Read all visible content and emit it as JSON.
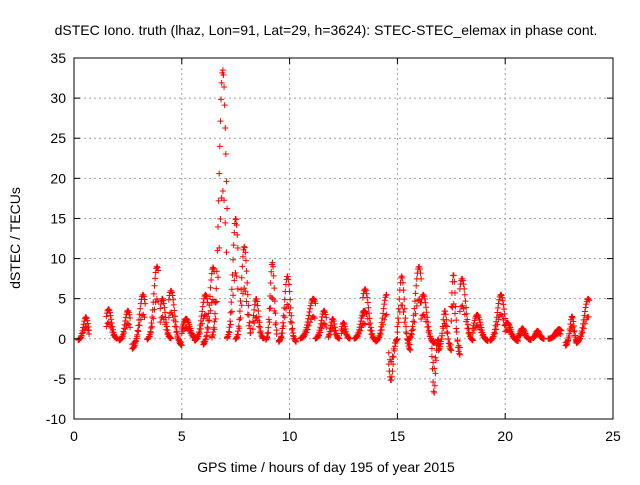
{
  "chart_data": {
    "type": "scatter",
    "title": "dSTEC Iono. truth (lhaz, Lon=91, Lat=29, h=3624): STEC-STEC_elemax in phase cont.",
    "xlabel": "GPS time / hours of day 195 of year 2015",
    "ylabel": "dSTEC  / TECUs",
    "xlim": [
      0,
      25
    ],
    "ylim": [
      -10,
      35
    ],
    "xticks": [
      0,
      5,
      10,
      15,
      20,
      25
    ],
    "yticks": [
      -10,
      -5,
      0,
      5,
      10,
      15,
      20,
      25,
      30,
      35
    ],
    "grid": true,
    "marker": "plus",
    "color": "#ff0000",
    "arcs": [
      {
        "t0": 0.2,
        "t1": 0.7,
        "peak": 2.7,
        "tpk": 0.55,
        "low": -0.3
      },
      {
        "t0": 1.5,
        "t1": 2.0,
        "peak": 3.7,
        "tpk": 1.6,
        "low": 0.0
      },
      {
        "t0": 2.1,
        "t1": 2.6,
        "peak": 3.5,
        "tpk": 2.5,
        "low": -0.4
      },
      {
        "t0": 2.7,
        "t1": 3.3,
        "peak": 5.5,
        "tpk": 3.2,
        "low": -2.2
      },
      {
        "t0": 3.4,
        "t1": 3.9,
        "peak": 9.0,
        "tpk": 3.85,
        "low": -0.3
      },
      {
        "t0": 4.0,
        "t1": 4.5,
        "peak": 5.0,
        "tpk": 4.1,
        "low": 0.0
      },
      {
        "t0": 4.4,
        "t1": 5.0,
        "peak": 6.0,
        "tpk": 4.5,
        "low": -1.5
      },
      {
        "t0": 5.0,
        "t1": 5.7,
        "peak": 2.5,
        "tpk": 5.2,
        "low": 0.0
      },
      {
        "t0": 5.6,
        "t1": 6.2,
        "peak": 5.5,
        "tpk": 6.1,
        "low": -0.5
      },
      {
        "t0": 6.0,
        "t1": 6.5,
        "peak": 8.9,
        "tpk": 6.45,
        "low": -1.4
      },
      {
        "t0": 6.4,
        "t1": 7.1,
        "peak": 33.5,
        "tpk": 6.9,
        "low": -0.2
      },
      {
        "t0": 7.1,
        "t1": 7.6,
        "peak": 15.0,
        "tpk": 7.5,
        "low": 0.0
      },
      {
        "t0": 7.5,
        "t1": 8.2,
        "peak": 11.5,
        "tpk": 7.9,
        "low": -0.3
      },
      {
        "t0": 8.3,
        "t1": 8.8,
        "peak": 5.0,
        "tpk": 8.45,
        "low": 0.0
      },
      {
        "t0": 8.9,
        "t1": 9.4,
        "peak": 9.5,
        "tpk": 9.2,
        "low": -0.4
      },
      {
        "t0": 9.5,
        "t1": 10.3,
        "peak": 7.8,
        "tpk": 9.9,
        "low": -0.8
      },
      {
        "t0": 10.5,
        "t1": 11.2,
        "peak": 5.0,
        "tpk": 11.1,
        "low": 0.0
      },
      {
        "t0": 11.2,
        "t1": 11.7,
        "peak": 3.5,
        "tpk": 11.6,
        "low": 0.0
      },
      {
        "t0": 11.8,
        "t1": 12.3,
        "peak": 2.5,
        "tpk": 12.0,
        "low": 0.0
      },
      {
        "t0": 12.4,
        "t1": 12.8,
        "peak": 2.0,
        "tpk": 12.5,
        "low": 0.0
      },
      {
        "t0": 13.0,
        "t1": 13.5,
        "peak": 3.5,
        "tpk": 13.45,
        "low": 0.0
      },
      {
        "t0": 13.4,
        "t1": 14.0,
        "peak": 6.2,
        "tpk": 13.5,
        "low": -0.5
      },
      {
        "t0": 14.0,
        "t1": 14.5,
        "peak": 5.5,
        "tpk": 14.5,
        "low": -0.7
      },
      {
        "t0": 14.6,
        "t1": 15.0,
        "peak": 0.0,
        "tpk": 14.7,
        "low": -5.2
      },
      {
        "t0": 15.0,
        "t1": 15.6,
        "peak": 7.8,
        "tpk": 15.2,
        "low": -2.5
      },
      {
        "t0": 15.5,
        "t1": 16.1,
        "peak": 9.0,
        "tpk": 16.0,
        "low": -0.5
      },
      {
        "t0": 16.1,
        "t1": 16.7,
        "peak": 5.5,
        "tpk": 16.2,
        "low": -1.0
      },
      {
        "t0": 16.6,
        "t1": 16.9,
        "peak": 0.0,
        "tpk": 16.7,
        "low": -6.8
      },
      {
        "t0": 16.9,
        "t1": 17.5,
        "peak": 3.5,
        "tpk": 17.2,
        "low": -2.5
      },
      {
        "t0": 17.5,
        "t1": 17.9,
        "peak": 8.0,
        "tpk": 17.6,
        "low": -3.5
      },
      {
        "t0": 17.9,
        "t1": 18.5,
        "peak": 7.5,
        "tpk": 18.0,
        "low": -0.5
      },
      {
        "t0": 18.5,
        "t1": 19.2,
        "peak": 3.0,
        "tpk": 18.7,
        "low": -0.5
      },
      {
        "t0": 19.3,
        "t1": 20.0,
        "peak": 5.5,
        "tpk": 19.8,
        "low": -0.5
      },
      {
        "t0": 20.0,
        "t1": 20.6,
        "peak": 2.0,
        "tpk": 20.1,
        "low": -0.5
      },
      {
        "t0": 20.6,
        "t1": 21.2,
        "peak": 1.3,
        "tpk": 20.8,
        "low": -0.3
      },
      {
        "t0": 21.3,
        "t1": 21.8,
        "peak": 1.0,
        "tpk": 21.5,
        "low": 0.0
      },
      {
        "t0": 22.0,
        "t1": 22.6,
        "peak": 1.2,
        "tpk": 22.5,
        "low": 0.0
      },
      {
        "t0": 22.8,
        "t1": 23.3,
        "peak": 2.8,
        "tpk": 23.1,
        "low": -1.5
      },
      {
        "t0": 23.3,
        "t1": 23.9,
        "peak": 5.0,
        "tpk": 23.85,
        "low": -1.0
      }
    ]
  }
}
